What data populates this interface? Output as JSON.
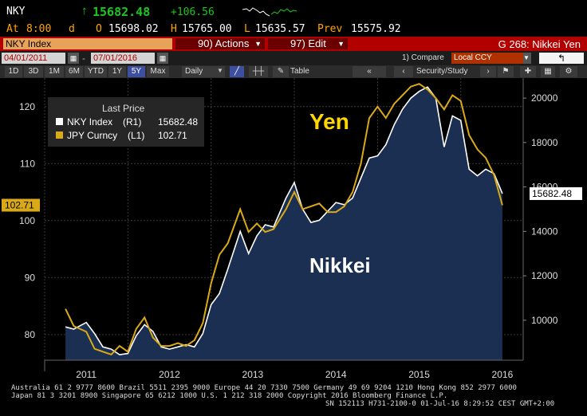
{
  "header": {
    "ticker": "NKY",
    "last_arrow": "↑",
    "last": "15682.48",
    "change": "+106.56",
    "at_label": "At",
    "time": "8:00",
    "d": "d",
    "open_label": "O",
    "open": "15698.02",
    "high_label": "H",
    "high": "15765.00",
    "low_label": "L",
    "low": "15635.57",
    "prev_label": "Prev",
    "prev": "15575.92"
  },
  "toolbar": {
    "security": "NKY Index",
    "actions": "90) Actions",
    "edit": "97) Edit",
    "page_title": "G 268: Nikkei Yen",
    "start_date": "04/01/2011",
    "end_date": "07/01/2016",
    "compare": "1) Compare",
    "currency": "Local CCY",
    "ranges": [
      "1D",
      "3D",
      "1M",
      "6M",
      "YTD",
      "1Y",
      "5Y",
      "Max"
    ],
    "selected_range": "5Y",
    "period": "Daily",
    "table": "Table",
    "security_study": "Security/Study"
  },
  "colors": {
    "nikkei_line": "#ffffff",
    "nikkei_fill": "#1a2f52",
    "yen_line": "#d9a917",
    "highlight": "#ffd700",
    "toolbar_red": "#b20000"
  },
  "chart_data": {
    "type": "line",
    "legend": {
      "title": "Last Price",
      "items": [
        {
          "label": "NKY Index",
          "axis": "(R1)",
          "value": "15682.48"
        },
        {
          "label": "JPY Curncy",
          "axis": "(L1)",
          "value": "102.71"
        }
      ]
    },
    "annotations": [
      "Yen",
      "Nikkei"
    ],
    "x_tick_labels": [
      "2011",
      "2012",
      "2013",
      "2014",
      "2015",
      "2016"
    ],
    "left_axis": {
      "ticks": [
        80,
        90,
        100,
        110,
        120
      ],
      "range": [
        75.5,
        125
      ],
      "last_label": "102.71"
    },
    "right_axis": {
      "ticks": [
        10000,
        12000,
        14000,
        16000,
        18000,
        20000
      ],
      "range": [
        8200,
        20900
      ],
      "last_label": "15682.48"
    },
    "series": [
      {
        "name": "NKY Index",
        "axis": "right",
        "color": "#ffffff",
        "x": [
          2011.25,
          2011.35,
          2011.5,
          2011.6,
          2011.7,
          2011.8,
          2011.9,
          2012.0,
          2012.1,
          2012.2,
          2012.3,
          2012.4,
          2012.5,
          2012.6,
          2012.7,
          2012.8,
          2012.9,
          2013.0,
          2013.1,
          2013.2,
          2013.35,
          2013.45,
          2013.55,
          2013.65,
          2013.75,
          2013.9,
          2014.0,
          2014.1,
          2014.2,
          2014.3,
          2014.4,
          2014.5,
          2014.6,
          2014.7,
          2014.8,
          2014.9,
          2015.0,
          2015.1,
          2015.2,
          2015.3,
          2015.4,
          2015.5,
          2015.6,
          2015.7,
          2015.8,
          2015.9,
          2016.0,
          2016.1,
          2016.2,
          2016.3,
          2016.4,
          2016.5
        ],
        "values": [
          9700,
          9600,
          9900,
          9400,
          8800,
          8700,
          8450,
          8500,
          9300,
          9800,
          9500,
          8800,
          8700,
          8800,
          8900,
          8800,
          9400,
          10700,
          11200,
          12300,
          14000,
          13000,
          13800,
          14300,
          14200,
          15500,
          16200,
          15000,
          14400,
          14500,
          14900,
          15300,
          15200,
          15500,
          16400,
          17300,
          17400,
          17900,
          18800,
          19500,
          20000,
          20300,
          20500,
          20000,
          17800,
          19200,
          19000,
          16800,
          16500,
          16800,
          16600,
          15700
        ]
      },
      {
        "name": "JPY Curncy",
        "axis": "left",
        "color": "#d9a917",
        "x": [
          2011.25,
          2011.35,
          2011.5,
          2011.6,
          2011.7,
          2011.8,
          2011.9,
          2012.0,
          2012.1,
          2012.2,
          2012.3,
          2012.4,
          2012.5,
          2012.6,
          2012.7,
          2012.8,
          2012.9,
          2013.0,
          2013.1,
          2013.2,
          2013.35,
          2013.45,
          2013.55,
          2013.65,
          2013.75,
          2013.9,
          2014.0,
          2014.1,
          2014.2,
          2014.3,
          2014.4,
          2014.5,
          2014.6,
          2014.7,
          2014.8,
          2014.9,
          2015.0,
          2015.1,
          2015.2,
          2015.3,
          2015.4,
          2015.5,
          2015.6,
          2015.7,
          2015.8,
          2015.9,
          2016.0,
          2016.1,
          2016.2,
          2016.3,
          2016.4,
          2016.5
        ],
        "values": [
          84.5,
          81.5,
          80.5,
          77.5,
          77,
          76.5,
          78,
          77,
          81,
          83,
          79.5,
          78,
          78,
          78.5,
          78,
          79,
          82,
          89,
          94,
          96,
          102,
          98,
          99.5,
          98,
          98.5,
          102,
          105,
          102,
          102.5,
          103,
          101.5,
          101.5,
          102.5,
          105,
          110,
          118,
          120,
          118,
          120.5,
          122,
          123.5,
          124,
          123,
          121.5,
          119.5,
          122,
          121,
          115,
          112.5,
          111,
          108,
          102.7
        ]
      }
    ]
  }
}
